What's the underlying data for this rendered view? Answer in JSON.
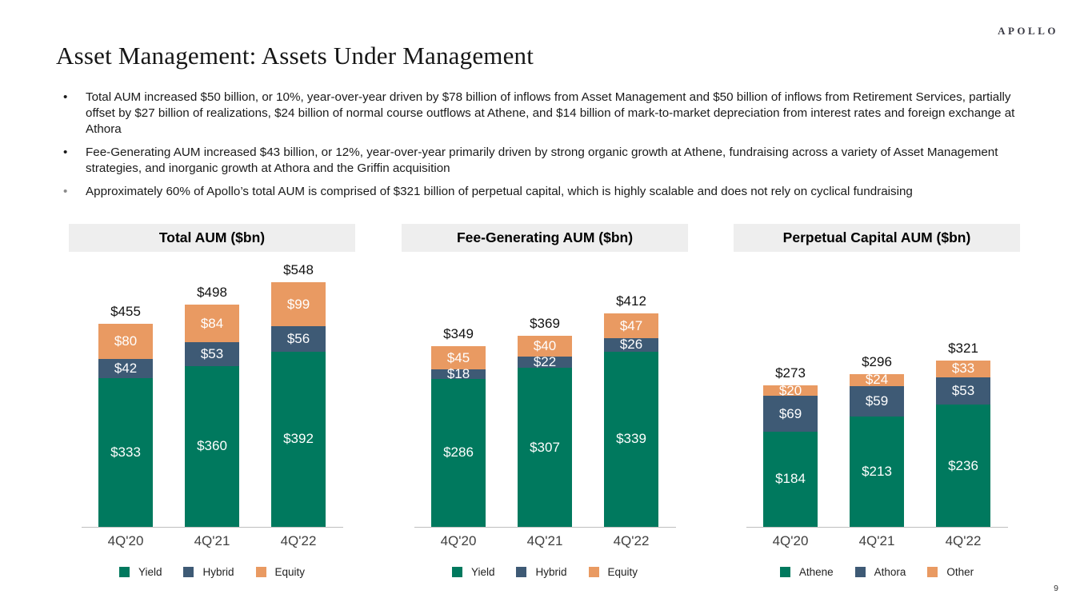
{
  "slide": {
    "logo": "APOLLO",
    "title": "Asset Management: Assets Under Management",
    "page_number": "9",
    "bullets": [
      "Total AUM increased $50 billion, or 10%, year-over-year driven by $78 billion of inflows from Asset Management and $50 billion of inflows from Retirement Services, partially offset by $27 billion of realizations, $24 billion of normal course outflows at Athene, and $14 billion of mark-to-market depreciation from interest rates and foreign exchange at Athora",
      "Fee-Generating AUM increased $43 billion, or 12%, year-over-year primarily driven by strong organic growth at Athene, fundraising across a variety of Asset Management strategies, and inorganic growth at Athora and the Griffin acquisition",
      "Approximately 60% of Apollo’s total AUM is comprised of $321 billion of perpetual capital, which is highly scalable and does not rely on cyclical fundraising"
    ]
  },
  "colors": {
    "green": "#00795E",
    "blue": "#3E5A75",
    "orange": "#E99A62",
    "header_bg": "#EEEEEE",
    "axis_line": "#BFBFBF"
  },
  "chart_data": [
    {
      "type": "bar",
      "stacked": true,
      "title": "Total AUM ($bn)",
      "categories": [
        "4Q'20",
        "4Q'21",
        "4Q'22"
      ],
      "series": [
        {
          "name": "Yield",
          "color": "#00795E",
          "values": [
            333,
            360,
            392
          ]
        },
        {
          "name": "Hybrid",
          "color": "#3E5A75",
          "values": [
            42,
            53,
            56
          ]
        },
        {
          "name": "Equity",
          "color": "#E99A62",
          "values": [
            80,
            84,
            99
          ]
        }
      ],
      "totals": [
        455,
        498,
        548
      ],
      "ylim": [
        0,
        590
      ],
      "grid": false,
      "legend_position": "bottom",
      "value_prefix": "$"
    },
    {
      "type": "bar",
      "stacked": true,
      "title": "Fee-Generating AUM ($bn)",
      "categories": [
        "4Q'20",
        "4Q'21",
        "4Q'22"
      ],
      "series": [
        {
          "name": "Yield",
          "color": "#00795E",
          "values": [
            286,
            307,
            339
          ]
        },
        {
          "name": "Hybrid",
          "color": "#3E5A75",
          "values": [
            18,
            22,
            26
          ]
        },
        {
          "name": "Equity",
          "color": "#E99A62",
          "values": [
            45,
            40,
            47
          ]
        }
      ],
      "totals": [
        349,
        369,
        412
      ],
      "ylim": [
        0,
        510
      ],
      "grid": false,
      "legend_position": "bottom",
      "value_prefix": "$"
    },
    {
      "type": "bar",
      "stacked": true,
      "title": "Perpetual Capital AUM ($bn)",
      "categories": [
        "4Q'20",
        "4Q'21",
        "4Q'22"
      ],
      "series": [
        {
          "name": "Athene",
          "color": "#00795E",
          "values": [
            184,
            213,
            236
          ]
        },
        {
          "name": "Athora",
          "color": "#3E5A75",
          "values": [
            69,
            59,
            53
          ]
        },
        {
          "name": "Other",
          "color": "#E99A62",
          "values": [
            20,
            24,
            33
          ]
        }
      ],
      "totals": [
        273,
        296,
        321
      ],
      "ylim": [
        0,
        510
      ],
      "grid": false,
      "legend_position": "bottom",
      "value_prefix": "$"
    }
  ]
}
